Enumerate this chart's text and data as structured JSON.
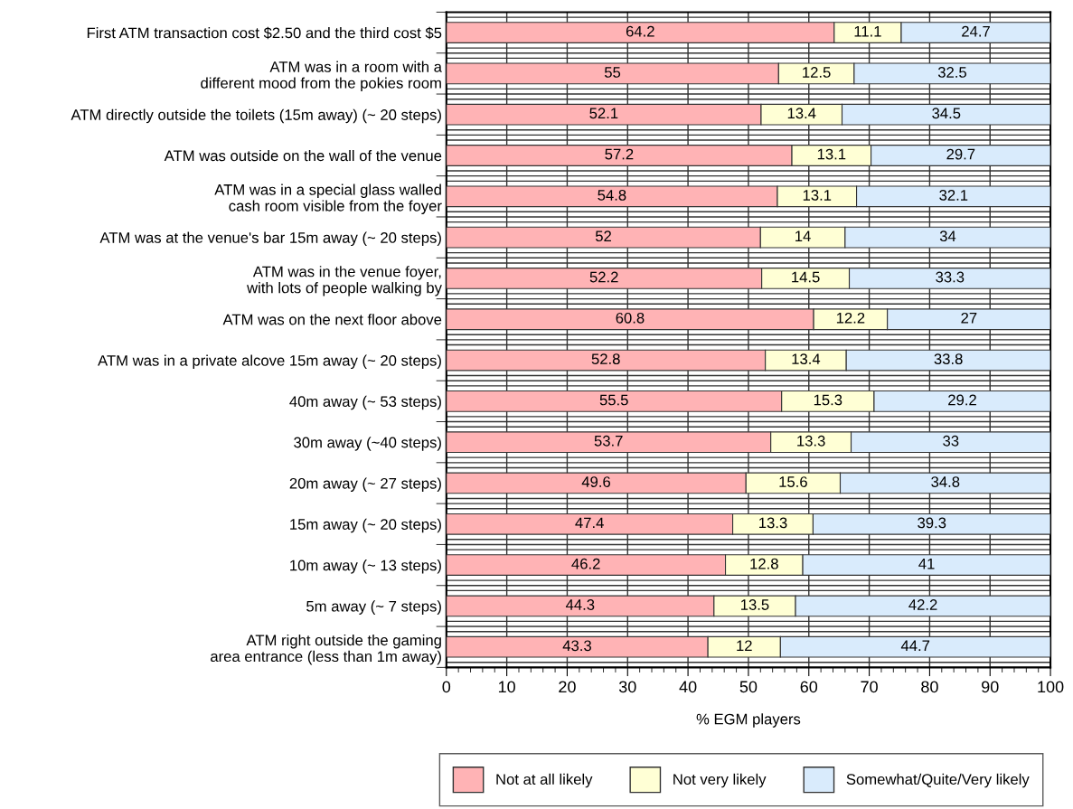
{
  "chart_data": {
    "type": "bar",
    "orientation": "horizontal",
    "stacked": true,
    "data_labels": true,
    "grid": true,
    "legend": "bottom right",
    "xlabel": "% EGM players",
    "xlim": [
      0,
      100
    ],
    "xticks": [
      0,
      10,
      20,
      30,
      40,
      50,
      60,
      70,
      80,
      90,
      100
    ],
    "categories": [
      "First ATM transaction cost $2.50 and the third cost $5",
      "ATM was in a room with a\ndifferent mood from the pokies room",
      "ATM directly outside the toilets (15m away) (~ 20 steps)",
      "ATM was outside on the wall of the venue",
      "ATM was in a special glass walled\ncash room visible from the foyer",
      "ATM was at the venue's bar 15m away (~ 20 steps)",
      "ATM was in the venue foyer,\nwith lots of people walking by",
      "ATM was on the next floor above",
      "ATM was in a private alcove 15m away (~ 20 steps)",
      "40m away (~ 53 steps)",
      "30m away (~40 steps)",
      "20m away (~ 27 steps)",
      "15m away (~ 20 steps)",
      "10m away (~ 13 steps)",
      "5m away (~ 7 steps)",
      "ATM right outside the gaming\narea entrance (less than 1m away)"
    ],
    "series": [
      {
        "name": "Not at all likely",
        "color": "#ffb3b5",
        "values": [
          64.2,
          55,
          52.1,
          57.2,
          54.8,
          52,
          52.2,
          60.8,
          52.8,
          55.5,
          53.7,
          49.6,
          47.4,
          46.2,
          44.3,
          43.3
        ]
      },
      {
        "name": "Not very likely",
        "color": "#ffffd5",
        "values": [
          11.1,
          12.5,
          13.4,
          13.1,
          13.1,
          14,
          14.5,
          12.2,
          13.4,
          15.3,
          13.3,
          15.6,
          13.3,
          12.8,
          13.5,
          12
        ]
      },
      {
        "name": "Somewhat/Quite/Very likely",
        "color": "#d9ebfc",
        "values": [
          24.7,
          32.5,
          34.5,
          29.7,
          32.1,
          34,
          33.3,
          27,
          33.8,
          29.2,
          33,
          34.8,
          39.3,
          41,
          42.2,
          44.7
        ]
      }
    ]
  }
}
